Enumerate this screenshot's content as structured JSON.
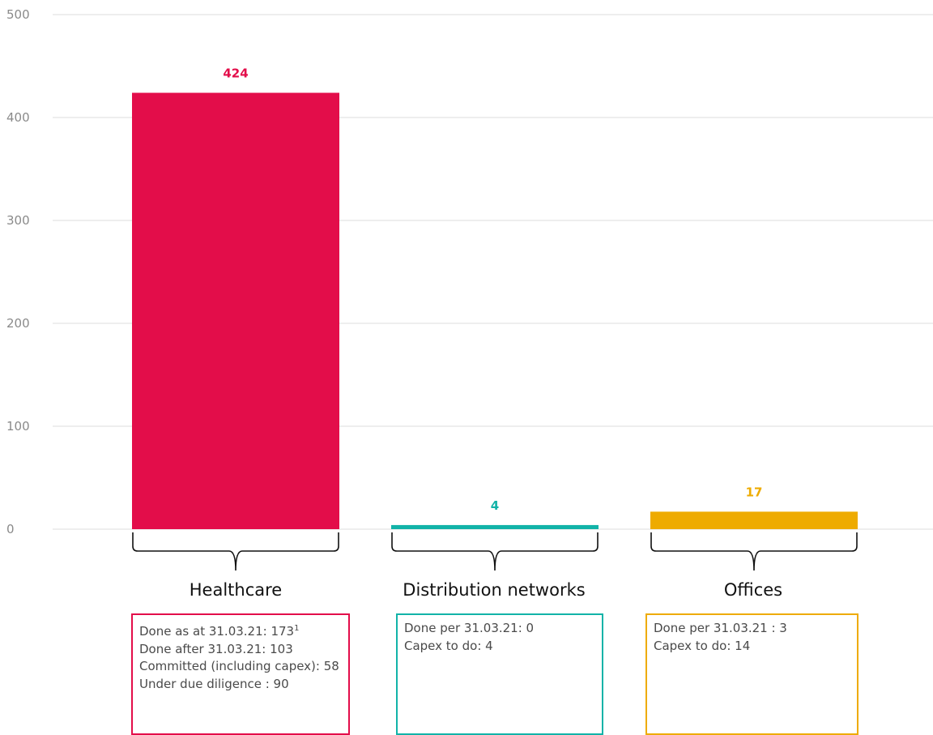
{
  "chart_data": {
    "type": "bar",
    "categories": [
      "Healthcare",
      "Distribution networks",
      "Offices"
    ],
    "values": [
      424,
      4,
      17
    ],
    "value_labels": [
      "424",
      "4",
      "17"
    ],
    "colors": [
      "#e30d4a",
      "#12b3a8",
      "#eeab00"
    ],
    "ylim": [
      0,
      500
    ],
    "yticks": [
      0,
      100,
      200,
      300,
      400,
      500
    ],
    "grid": true,
    "title": "",
    "xlabel": "",
    "ylabel": ""
  },
  "notes": [
    {
      "lines": [
        "Done as at 31.03.21: 173",
        "Done after 31.03.21: 103",
        "Committed (including capex): 58",
        "Under due diligence : 90"
      ],
      "sup": "1"
    },
    {
      "lines": [
        "Done per 31.03.21: 0",
        "Capex to do: 4"
      ],
      "sup": ""
    },
    {
      "lines": [
        "Done per 31.03.21 : 3",
        "Capex to do: 14"
      ],
      "sup": ""
    }
  ]
}
